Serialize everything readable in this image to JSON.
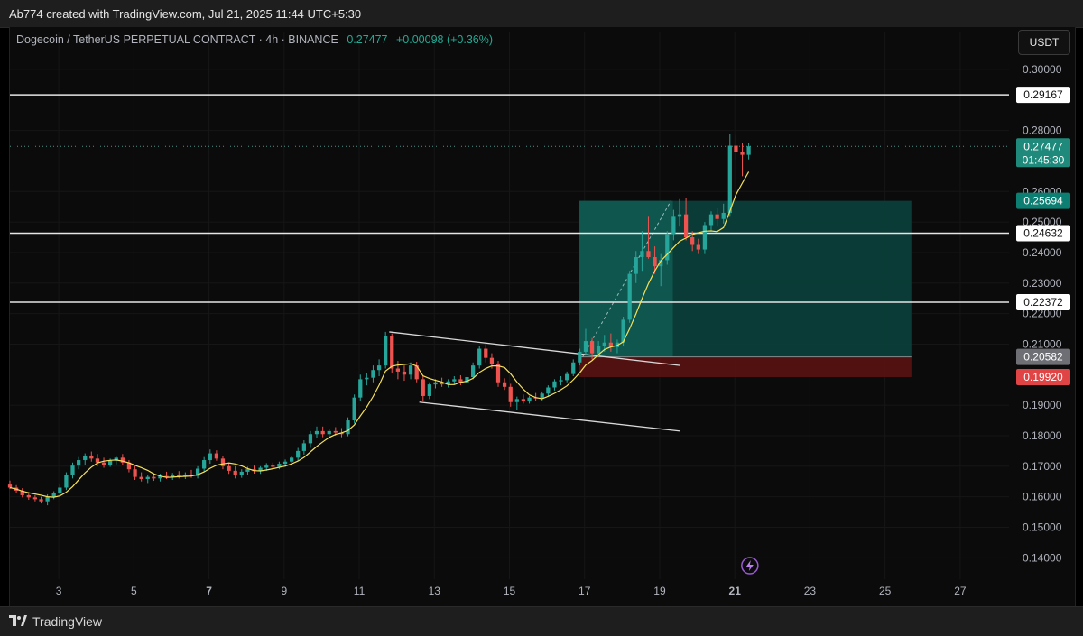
{
  "header": {
    "caption": "Ab774 created with TradingView.com, Jul 21, 2025 11:44 UTC+5:30"
  },
  "legend": {
    "symbol": "Dogecoin / TetherUS PERPETUAL CONTRACT · 4h · BINANCE",
    "price": "0.27477",
    "change": "+0.00098 (+0.36%)"
  },
  "currency_button": "USDT",
  "footer": {
    "brand": "TradingView"
  },
  "colors": {
    "up": "#26a69a",
    "down": "#ef5350",
    "ma": "#f5e15a",
    "profit_zone": "#0f5a51",
    "loss_zone": "#5a1212",
    "level_line": "#e6e6e6"
  },
  "chart_data": {
    "type": "candlestick",
    "interval": "4h",
    "ylim": [
      0.133,
      0.305
    ],
    "xlim": [
      1.7,
      28.3
    ],
    "x_unit": "day of month (Jul 2025)",
    "y_ticks": [
      "0.30000",
      "0.28000",
      "0.26000",
      "0.25000",
      "0.24000",
      "0.23000",
      "0.22000",
      "0.21000",
      "0.19000",
      "0.18000",
      "0.17000",
      "0.16000",
      "0.15000",
      "0.14000"
    ],
    "y_tick_values": [
      0.3,
      0.28,
      0.26,
      0.25,
      0.24,
      0.23,
      0.22,
      0.21,
      0.19,
      0.18,
      0.17,
      0.16,
      0.15,
      0.14
    ],
    "x_ticks": [
      "3",
      "5",
      "7",
      "9",
      "11",
      "13",
      "15",
      "17",
      "19",
      "21",
      "23",
      "25",
      "27"
    ],
    "x_tick_values": [
      3,
      5,
      7,
      9,
      11,
      13,
      15,
      17,
      19,
      21,
      23,
      25,
      27
    ],
    "x_bold_ticks": [
      "7",
      "21"
    ],
    "horizontal_levels": [
      {
        "value": 0.29167,
        "label": "0.29167"
      },
      {
        "value": 0.24632,
        "label": "0.24632"
      },
      {
        "value": 0.22372,
        "label": "0.22372"
      }
    ],
    "current_price": {
      "value": 0.27477,
      "label": "0.27477",
      "countdown": "01:45:30"
    },
    "position": {
      "entry": 0.20582,
      "entry_label": "0.20582",
      "target": 0.25694,
      "target_label": "0.25694",
      "stop": 0.1992,
      "stop_label": "0.19920",
      "x_start": 16.85,
      "x_end": 25.7,
      "x_filled_end": 19.35
    },
    "channel": {
      "upper": [
        [
          11.8,
          0.214
        ],
        [
          19.55,
          0.203
        ]
      ],
      "lower": [
        [
          12.6,
          0.191
        ],
        [
          19.55,
          0.1815
        ]
      ]
    },
    "candles": [
      [
        1.7,
        0.164,
        0.1653,
        0.1625,
        0.163
      ],
      [
        1.87,
        0.163,
        0.1638,
        0.1612,
        0.162
      ],
      [
        2.03,
        0.162,
        0.1628,
        0.1598,
        0.1605
      ],
      [
        2.2,
        0.1605,
        0.1612,
        0.159,
        0.1598
      ],
      [
        2.37,
        0.1598,
        0.1605,
        0.1585,
        0.1592
      ],
      [
        2.53,
        0.1592,
        0.16,
        0.1578,
        0.1585
      ],
      [
        2.7,
        0.1585,
        0.1608,
        0.1572,
        0.16
      ],
      [
        2.87,
        0.16,
        0.1618,
        0.1592,
        0.1612
      ],
      [
        3.03,
        0.1612,
        0.164,
        0.1605,
        0.163
      ],
      [
        3.2,
        0.163,
        0.168,
        0.1622,
        0.167
      ],
      [
        3.37,
        0.167,
        0.1712,
        0.166,
        0.1702
      ],
      [
        3.53,
        0.1702,
        0.173,
        0.169,
        0.172
      ],
      [
        3.7,
        0.172,
        0.1742,
        0.1705,
        0.1735
      ],
      [
        3.87,
        0.1735,
        0.1748,
        0.1715,
        0.1725
      ],
      [
        4.03,
        0.1725,
        0.174,
        0.17,
        0.1712
      ],
      [
        4.2,
        0.1712,
        0.1728,
        0.1695,
        0.1705
      ],
      [
        4.37,
        0.1705,
        0.1725,
        0.1698,
        0.1718
      ],
      [
        4.53,
        0.1718,
        0.1735,
        0.1706,
        0.1728
      ],
      [
        4.7,
        0.1728,
        0.174,
        0.1705,
        0.1712
      ],
      [
        4.87,
        0.1712,
        0.172,
        0.168,
        0.169
      ],
      [
        5.03,
        0.169,
        0.17,
        0.1655,
        0.1665
      ],
      [
        5.2,
        0.1665,
        0.168,
        0.165,
        0.1658
      ],
      [
        5.37,
        0.1658,
        0.1672,
        0.1645,
        0.1665
      ],
      [
        5.53,
        0.1665,
        0.1678,
        0.1652,
        0.166
      ],
      [
        5.7,
        0.166,
        0.1675,
        0.165,
        0.1668
      ],
      [
        5.87,
        0.1668,
        0.1682,
        0.1658,
        0.1665
      ],
      [
        6.03,
        0.1665,
        0.1678,
        0.1655,
        0.167
      ],
      [
        6.2,
        0.167,
        0.1684,
        0.166,
        0.1666
      ],
      [
        6.37,
        0.1666,
        0.168,
        0.1658,
        0.1672
      ],
      [
        6.53,
        0.1672,
        0.1688,
        0.1662,
        0.1668
      ],
      [
        6.7,
        0.1668,
        0.17,
        0.166,
        0.1692
      ],
      [
        6.87,
        0.1692,
        0.173,
        0.168,
        0.172
      ],
      [
        7.03,
        0.172,
        0.1755,
        0.1708,
        0.1742
      ],
      [
        7.2,
        0.1742,
        0.1752,
        0.1718,
        0.1725
      ],
      [
        7.37,
        0.1725,
        0.1732,
        0.169,
        0.17
      ],
      [
        7.53,
        0.17,
        0.1712,
        0.1675,
        0.1685
      ],
      [
        7.7,
        0.1685,
        0.17,
        0.166,
        0.1672
      ],
      [
        7.87,
        0.1672,
        0.169,
        0.1662,
        0.1682
      ],
      [
        8.03,
        0.1682,
        0.1698,
        0.1672,
        0.169
      ],
      [
        8.2,
        0.169,
        0.1702,
        0.1676,
        0.1684
      ],
      [
        8.37,
        0.1684,
        0.17,
        0.1675,
        0.1695
      ],
      [
        8.53,
        0.1695,
        0.171,
        0.1685,
        0.1702
      ],
      [
        8.7,
        0.1702,
        0.1712,
        0.169,
        0.1698
      ],
      [
        8.87,
        0.1698,
        0.1715,
        0.169,
        0.1708
      ],
      [
        9.03,
        0.1708,
        0.1722,
        0.1698,
        0.1715
      ],
      [
        9.2,
        0.1715,
        0.1735,
        0.1705,
        0.1728
      ],
      [
        9.37,
        0.1728,
        0.176,
        0.1718,
        0.175
      ],
      [
        9.53,
        0.175,
        0.1785,
        0.1738,
        0.1775
      ],
      [
        9.7,
        0.1775,
        0.1815,
        0.176,
        0.1805
      ],
      [
        9.87,
        0.1805,
        0.183,
        0.1792,
        0.1815
      ],
      [
        10.03,
        0.1815,
        0.183,
        0.1795,
        0.1805
      ],
      [
        10.2,
        0.1805,
        0.1822,
        0.1795,
        0.1815
      ],
      [
        10.37,
        0.1815,
        0.1828,
        0.18,
        0.181
      ],
      [
        10.53,
        0.181,
        0.1825,
        0.1795,
        0.1805
      ],
      [
        10.7,
        0.1805,
        0.186,
        0.1798,
        0.185
      ],
      [
        10.87,
        0.185,
        0.1935,
        0.184,
        0.1925
      ],
      [
        11.03,
        0.1925,
        0.2,
        0.1915,
        0.1985
      ],
      [
        11.2,
        0.1985,
        0.2005,
        0.1965,
        0.199
      ],
      [
        11.37,
        0.199,
        0.203,
        0.1975,
        0.2015
      ],
      [
        11.53,
        0.2015,
        0.205,
        0.1995,
        0.203
      ],
      [
        11.7,
        0.203,
        0.214,
        0.202,
        0.2125
      ],
      [
        11.87,
        0.2125,
        0.2135,
        0.2005,
        0.202
      ],
      [
        12.03,
        0.202,
        0.2045,
        0.1985,
        0.201
      ],
      [
        12.2,
        0.201,
        0.203,
        0.198,
        0.2
      ],
      [
        12.37,
        0.2,
        0.204,
        0.1985,
        0.203
      ],
      [
        12.53,
        0.203,
        0.2042,
        0.1975,
        0.1985
      ],
      [
        12.7,
        0.1985,
        0.1998,
        0.1915,
        0.193
      ],
      [
        12.87,
        0.193,
        0.1975,
        0.192,
        0.1968
      ],
      [
        13.03,
        0.1968,
        0.1985,
        0.1955,
        0.1975
      ],
      [
        13.2,
        0.1975,
        0.199,
        0.196,
        0.1968
      ],
      [
        13.37,
        0.1968,
        0.1985,
        0.1958,
        0.1978
      ],
      [
        13.53,
        0.1978,
        0.1995,
        0.1968,
        0.1985
      ],
      [
        13.7,
        0.1985,
        0.1998,
        0.1965,
        0.1975
      ],
      [
        13.87,
        0.1975,
        0.1998,
        0.1968,
        0.1992
      ],
      [
        14.03,
        0.1992,
        0.204,
        0.1985,
        0.203
      ],
      [
        14.2,
        0.203,
        0.2095,
        0.202,
        0.2085
      ],
      [
        14.37,
        0.2085,
        0.21,
        0.204,
        0.2055
      ],
      [
        14.53,
        0.2055,
        0.207,
        0.202,
        0.2035
      ],
      [
        14.7,
        0.2035,
        0.2045,
        0.196,
        0.1975
      ],
      [
        14.87,
        0.1975,
        0.1988,
        0.195,
        0.196
      ],
      [
        15.03,
        0.196,
        0.197,
        0.1895,
        0.191
      ],
      [
        15.2,
        0.191,
        0.1928,
        0.1885,
        0.192
      ],
      [
        15.37,
        0.192,
        0.1935,
        0.1905,
        0.1912
      ],
      [
        15.53,
        0.1912,
        0.193,
        0.1905,
        0.1925
      ],
      [
        15.7,
        0.1925,
        0.194,
        0.1915,
        0.1922
      ],
      [
        15.87,
        0.1922,
        0.1945,
        0.1915,
        0.1938
      ],
      [
        16.03,
        0.1938,
        0.1965,
        0.193,
        0.1958
      ],
      [
        16.2,
        0.1958,
        0.1985,
        0.1948,
        0.1978
      ],
      [
        16.37,
        0.1978,
        0.1995,
        0.1965,
        0.1982
      ],
      [
        16.53,
        0.1982,
        0.201,
        0.1975,
        0.2002
      ],
      [
        16.7,
        0.2002,
        0.205,
        0.1995,
        0.204
      ],
      [
        16.87,
        0.204,
        0.2085,
        0.203,
        0.2075
      ],
      [
        17.03,
        0.2075,
        0.215,
        0.2065,
        0.211
      ],
      [
        17.2,
        0.211,
        0.212,
        0.205,
        0.207
      ],
      [
        17.37,
        0.207,
        0.211,
        0.206,
        0.2095
      ],
      [
        17.53,
        0.2095,
        0.213,
        0.2075,
        0.2105
      ],
      [
        17.7,
        0.2105,
        0.2135,
        0.2075,
        0.209
      ],
      [
        17.87,
        0.209,
        0.2115,
        0.207,
        0.2105
      ],
      [
        18.03,
        0.2105,
        0.219,
        0.2095,
        0.218
      ],
      [
        18.2,
        0.218,
        0.234,
        0.217,
        0.233
      ],
      [
        18.37,
        0.233,
        0.2405,
        0.23,
        0.2385
      ],
      [
        18.53,
        0.2385,
        0.247,
        0.234,
        0.2405
      ],
      [
        18.7,
        0.2405,
        0.252,
        0.238,
        0.2385
      ],
      [
        18.87,
        0.2385,
        0.242,
        0.233,
        0.2355
      ],
      [
        19.03,
        0.2355,
        0.2395,
        0.229,
        0.2375
      ],
      [
        19.2,
        0.2375,
        0.247,
        0.236,
        0.246
      ],
      [
        19.37,
        0.246,
        0.254,
        0.244,
        0.252
      ],
      [
        19.53,
        0.252,
        0.2575,
        0.2485,
        0.2525
      ],
      [
        19.7,
        0.2525,
        0.258,
        0.244,
        0.245
      ],
      [
        19.87,
        0.245,
        0.247,
        0.2405,
        0.2425
      ],
      [
        20.03,
        0.2425,
        0.2445,
        0.2395,
        0.241
      ],
      [
        20.2,
        0.241,
        0.25,
        0.2395,
        0.249
      ],
      [
        20.37,
        0.249,
        0.2535,
        0.247,
        0.2525
      ],
      [
        20.53,
        0.2525,
        0.2545,
        0.2485,
        0.251
      ],
      [
        20.7,
        0.251,
        0.256,
        0.2495,
        0.253
      ],
      [
        20.87,
        0.253,
        0.279,
        0.252,
        0.275
      ],
      [
        21.03,
        0.275,
        0.2785,
        0.2705,
        0.273
      ],
      [
        21.2,
        0.273,
        0.276,
        0.265,
        0.272
      ],
      [
        21.37,
        0.272,
        0.276,
        0.2705,
        0.2748
      ]
    ]
  }
}
